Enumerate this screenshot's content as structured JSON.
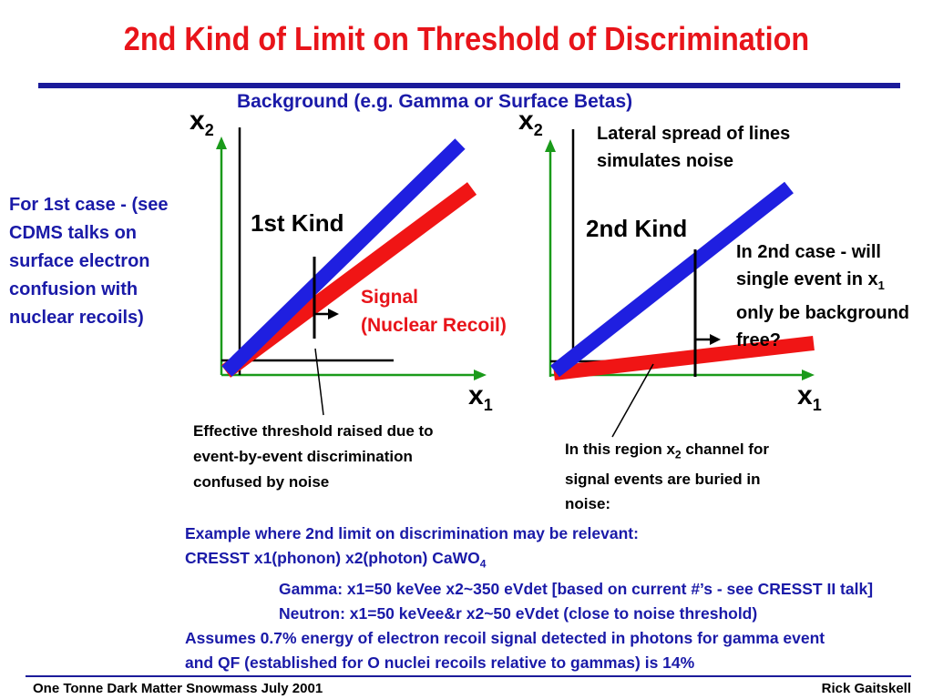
{
  "title": "2nd Kind of Limit on Threshold of Discrimination",
  "background_label": "Background (e.g. Gamma or Surface Betas)",
  "left_note": [
    "For 1st case - (see",
    "CDMS talks on",
    "surface electron",
    "confusion with",
    "nuclear recoils)"
  ],
  "left_panel": {
    "y_axis_label": "x",
    "y_axis_sub": "2",
    "x_axis_label": "x",
    "x_axis_sub": "1",
    "kind_label": "1st Kind",
    "signal_label": [
      "Signal",
      "(Nuclear Recoil)"
    ],
    "threshold_note": [
      "Effective threshold raised due to",
      "event-by-event discrimination",
      "confused by noise"
    ]
  },
  "right_panel": {
    "y_axis_label": "x",
    "y_axis_sub": "2",
    "x_axis_label": "x",
    "x_axis_sub": "1",
    "kind_label": "2nd Kind",
    "lateral_note": [
      "Lateral spread of lines",
      "simulates noise"
    ],
    "case2_note": {
      "line1": "In 2nd case - will",
      "line2_pre": "single event in x",
      "line2_sub": "1",
      "line3": "only be background",
      "line4": "free?"
    },
    "region_note": {
      "pre": "In this region x",
      "sub": "2",
      "post": " channel for signal events are buried in noise:"
    }
  },
  "example": {
    "line1": "Example where 2nd limit on discrimination may be relevant:",
    "line2_pre": "CRESST  x1(phonon) x2(photon)  CaWO",
    "line2_sub": "4",
    "line3": "Gamma: x1=50 keVee  x2~350 eVdet [based on current #’s - see CRESST II talk]",
    "line4": "Neutron: x1=50 keVee&r  x2~50 eVdet (close to noise threshold)",
    "line5": "Assumes 0.7% energy of electron recoil signal detected in photons for gamma event",
    "line6": "and QF (established for O nuclei recoils relative to gammas) is 14%"
  },
  "footer": {
    "left": "One Tonne Dark Matter Snowmass July 2001",
    "right": "Rick Gaitskell"
  },
  "colors": {
    "title": "#e8141a",
    "accent_blue": "#1a1aa8",
    "background_line": "#1f1fe0",
    "signal_line": "#f01515",
    "axis": "#1a9a1a"
  }
}
